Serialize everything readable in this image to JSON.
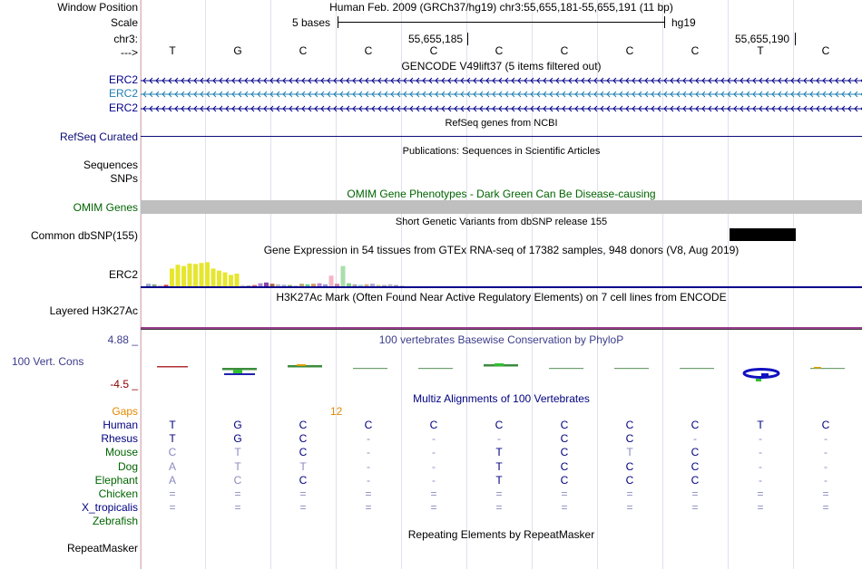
{
  "header": {
    "window_position_label": "Window Position",
    "window_position_value": "Human Feb. 2009 (GRCh37/hg19)   chr3:55,655,181-55,655,191 (11 bp)",
    "scale_label": "Scale",
    "scale_bases": "5 bases",
    "scale_assembly": "hg19",
    "chrom_label": "chr3:",
    "pos_1": "55,655,185",
    "pos_2": "55,655,190",
    "strand_label": "--->"
  },
  "bases": [
    "T",
    "G",
    "C",
    "C",
    "C",
    "C",
    "C",
    "C",
    "C",
    "T",
    "C"
  ],
  "tracks": {
    "gencode": {
      "title": "GENCODE V49lift37 (5 items filtered out)",
      "genes": [
        {
          "label": "ERC2",
          "color": "#00008b"
        },
        {
          "label": "ERC2",
          "color": "#1e7fb0"
        },
        {
          "label": "ERC2",
          "color": "#00008b"
        }
      ]
    },
    "refseq": {
      "title": "RefSeq genes from NCBI",
      "label": "RefSeq Curated",
      "color": "#0c0c78"
    },
    "publications": {
      "title": "Publications: Sequences in Scientific Articles",
      "label_1": "Sequences",
      "label_2": "SNPs"
    },
    "omim": {
      "title": "OMIM Gene Phenotypes - Dark Green Can Be Disease-causing",
      "label": "OMIM Genes",
      "color": "#006400",
      "bar_color": "#bfbfbf"
    },
    "dbsnp": {
      "title": "Short Genetic Variants from dbSNP release 155",
      "label": "Common dbSNP(155)"
    },
    "gtex": {
      "title": "Gene Expression in 54 tissues from GTEx RNA-seq of 17382 samples, 948 donors (V8, Aug 2019)",
      "label": "ERC2",
      "color": "#00008b",
      "bars": [
        {
          "v": 0.1,
          "c": "#9aa8c8"
        },
        {
          "v": 0.08,
          "c": "#88a888"
        },
        {
          "v": 0.05,
          "c": "#e8c8d8"
        },
        {
          "v": 0.06,
          "c": "#cc4444"
        },
        {
          "v": 0.7,
          "c": "#e6e62e"
        },
        {
          "v": 0.85,
          "c": "#e6e62e"
        },
        {
          "v": 0.8,
          "c": "#e6e62e"
        },
        {
          "v": 0.9,
          "c": "#e6e62e"
        },
        {
          "v": 0.88,
          "c": "#e6e62e"
        },
        {
          "v": 0.92,
          "c": "#e6e62e"
        },
        {
          "v": 0.95,
          "c": "#e6e62e"
        },
        {
          "v": 0.7,
          "c": "#e6e62e"
        },
        {
          "v": 0.62,
          "c": "#e6e62e"
        },
        {
          "v": 0.55,
          "c": "#e6e62e"
        },
        {
          "v": 0.45,
          "c": "#e6e62e"
        },
        {
          "v": 0.5,
          "c": "#e6e62e"
        },
        {
          "v": 0.05,
          "c": "#cccccc"
        },
        {
          "v": 0.04,
          "c": "#aaaaaa"
        },
        {
          "v": 0.05,
          "c": "#cc6666"
        },
        {
          "v": 0.12,
          "c": "#aa88cc"
        },
        {
          "v": 0.15,
          "c": "#8844aa"
        },
        {
          "v": 0.1,
          "c": "#aa6644"
        },
        {
          "v": 0.08,
          "c": "#bbbbbb"
        },
        {
          "v": 0.06,
          "c": "#99aacc"
        },
        {
          "v": 0.05,
          "c": "#88aa66"
        },
        {
          "v": 0.04,
          "c": "#cccccc"
        },
        {
          "v": 0.1,
          "c": "#bbaa77"
        },
        {
          "v": 0.08,
          "c": "#66cc88"
        },
        {
          "v": 0.1,
          "c": "#cc9966"
        },
        {
          "v": 0.12,
          "c": "#bb88cc"
        },
        {
          "v": 0.08,
          "c": "#9999cc"
        },
        {
          "v": 0.42,
          "c": "#f4b6c6"
        },
        {
          "v": 0.1,
          "c": "#cc88aa"
        },
        {
          "v": 0.8,
          "c": "#aaddaa"
        },
        {
          "v": 0.12,
          "c": "#88cc88"
        },
        {
          "v": 0.08,
          "c": "#aaaaaa"
        },
        {
          "v": 0.06,
          "c": "#99cccc"
        },
        {
          "v": 0.08,
          "c": "#ccaa88"
        },
        {
          "v": 0.1,
          "c": "#aaaacc"
        },
        {
          "v": 0.06,
          "c": "#cccc99"
        },
        {
          "v": 0.05,
          "c": "#aaaaaa"
        },
        {
          "v": 0.08,
          "c": "#bbbbbb"
        },
        {
          "v": 0.05,
          "c": "#9999bb"
        },
        {
          "v": 0.04,
          "c": "#cccccc"
        }
      ]
    },
    "h3k27ac": {
      "title": "H3K27Ac Mark (Often Found Near Active Regulatory Elements) on 7 cell lines from ENCODE",
      "label": "Layered H3K27Ac"
    },
    "phylop": {
      "title": "100 vertebrates Basewise Conservation by PhyloP",
      "label": "100 Vert. Cons",
      "max": "4.88 _",
      "min": "-4.5 _",
      "color": "#3c3c8c",
      "max_color": "#3c3c8c",
      "min_color": "#8b0000"
    },
    "multiz": {
      "title": "Multiz Alignments of 100 Vertebrates",
      "gaps_label": "Gaps",
      "gaps_value": "12",
      "gaps_color": "#e08a00",
      "species": [
        {
          "name": "Human",
          "color": "#000080",
          "seq": [
            "T",
            "G",
            "C",
            "C",
            "C",
            "C",
            "C",
            "C",
            "C",
            "T",
            "C"
          ],
          "faint": []
        },
        {
          "name": "Rhesus",
          "color": "#000080",
          "seq": [
            "T",
            "G",
            "C",
            "-",
            "-",
            "-",
            "C",
            "C",
            "-",
            "-",
            "-"
          ],
          "faint": [
            3,
            4,
            5,
            8,
            9,
            10
          ]
        },
        {
          "name": "Mouse",
          "color": "#006400",
          "seq": [
            "C",
            "T",
            "C",
            "-",
            "-",
            "T",
            "C",
            "T",
            "C",
            "-",
            "-"
          ],
          "faint": [
            0,
            1,
            3,
            4,
            7,
            9,
            10
          ]
        },
        {
          "name": "Dog",
          "color": "#006400",
          "seq": [
            "A",
            "T",
            "T",
            "-",
            "-",
            "T",
            "C",
            "C",
            "C",
            "-",
            "-"
          ],
          "faint": [
            0,
            1,
            2,
            3,
            4,
            9,
            10
          ]
        },
        {
          "name": "Elephant",
          "color": "#006400",
          "seq": [
            "A",
            "C",
            "C",
            "-",
            "-",
            "T",
            "C",
            "C",
            "C",
            "-",
            "-"
          ],
          "faint": [
            0,
            1,
            3,
            4,
            9,
            10
          ]
        },
        {
          "name": "Chicken",
          "color": "#006400",
          "seq": [
            "=",
            "=",
            "=",
            "=",
            "=",
            "=",
            "=",
            "=",
            "=",
            "=",
            "="
          ],
          "faint": [
            0,
            1,
            2,
            3,
            4,
            5,
            6,
            7,
            8,
            9,
            10
          ]
        },
        {
          "name": "X_tropicalis",
          "color": "#000080",
          "seq": [
            "=",
            "=",
            "=",
            "=",
            "=",
            "=",
            "=",
            "=",
            "=",
            "=",
            "="
          ],
          "faint": [
            0,
            1,
            2,
            3,
            4,
            5,
            6,
            7,
            8,
            9,
            10
          ]
        },
        {
          "name": "Zebrafish",
          "color": "#006400",
          "seq": [],
          "faint": []
        }
      ]
    },
    "repeatmasker": {
      "title": "Repeating Elements by RepeatMasker",
      "label": "RepeatMasker"
    }
  }
}
